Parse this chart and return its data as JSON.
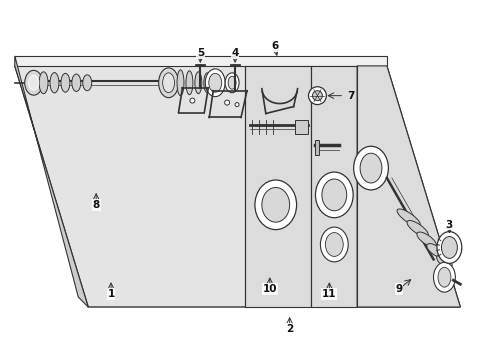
{
  "bg_color": "#ffffff",
  "line_color": "#333333",
  "panel_fill": "#e8e8e8",
  "panel_fill2": "#d8d8d8",
  "white": "#ffffff",
  "fig_width": 4.89,
  "fig_height": 3.6,
  "dpi": 100
}
